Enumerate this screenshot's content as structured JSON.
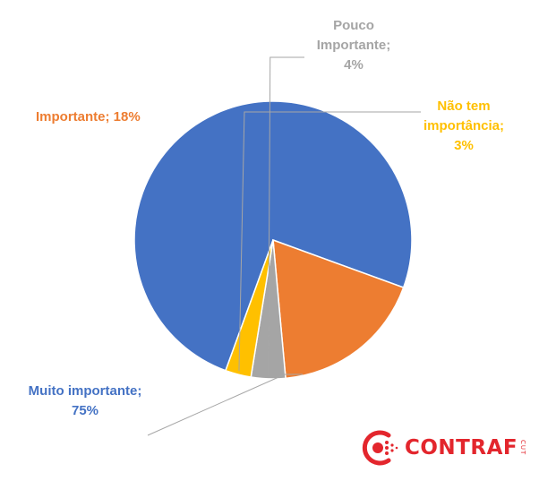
{
  "chart_data": {
    "type": "pie",
    "slices": [
      {
        "label_lines": [
          "Muito importante;",
          "75%"
        ],
        "category": "Muito importante",
        "value": 75,
        "color": "#4472C4"
      },
      {
        "label_lines": [
          "Importante; 18%"
        ],
        "category": "Importante",
        "value": 18,
        "color": "#ED7D31"
      },
      {
        "label_lines": [
          "Pouco",
          "Importante;",
          "4%"
        ],
        "category": "Pouco Importante",
        "value": 4,
        "color": "#A5A5A5"
      },
      {
        "label_lines": [
          "Não tem",
          "importância;",
          "3%"
        ],
        "category": "Não tem importância",
        "value": 3,
        "color": "#FFC000"
      }
    ],
    "start_angle_deg": 200,
    "direction": "clockwise"
  },
  "logo": {
    "text": "CONTRAF",
    "subtext": "CUT",
    "color": "#E3262D"
  }
}
